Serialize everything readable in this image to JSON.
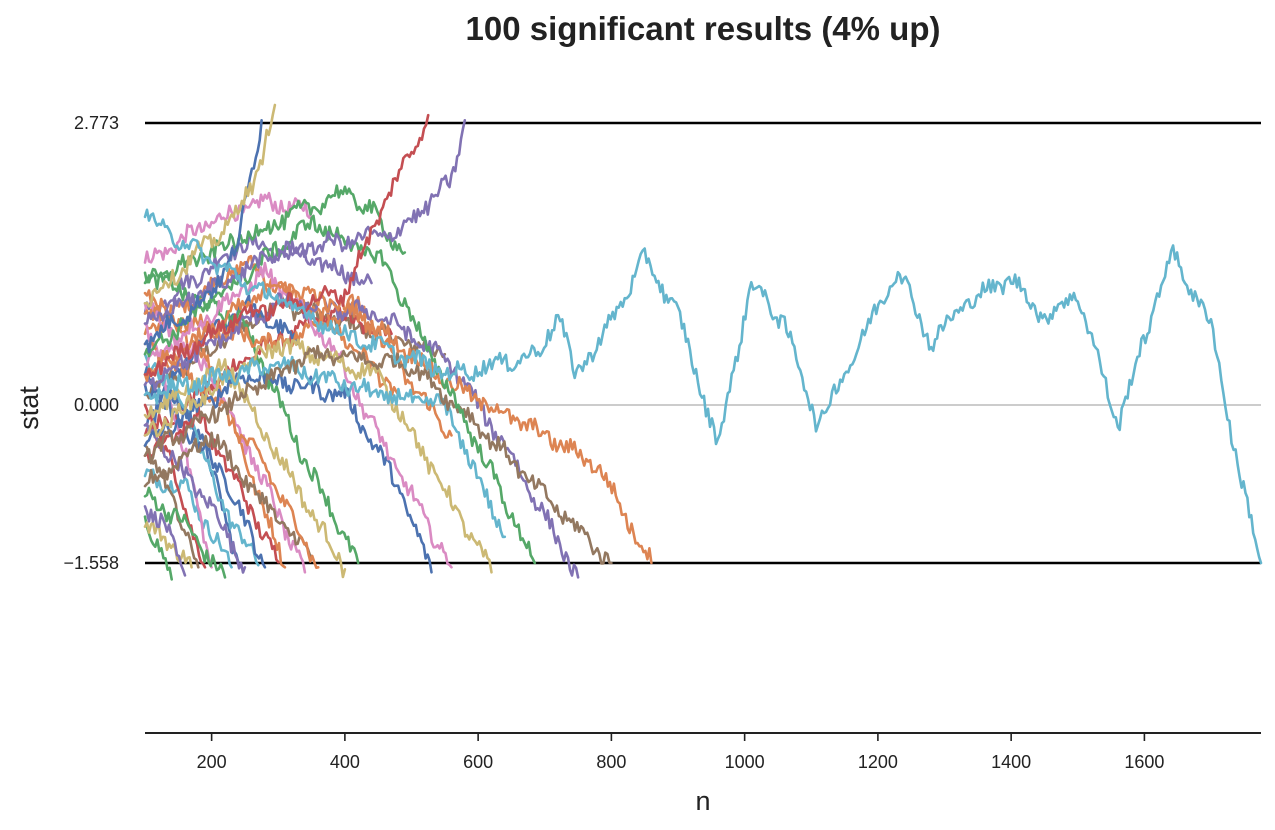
{
  "chart_data": {
    "type": "line",
    "title": "100 significant results (4% up)",
    "xlabel": "n",
    "ylabel": "stat",
    "xlim": [
      100,
      1775
    ],
    "ylim": [
      -3.6,
      3.1
    ],
    "x_ticks": [
      200,
      400,
      600,
      800,
      1000,
      1200,
      1400,
      1600
    ],
    "y_ticks": [
      -1.558,
      0.0,
      2.773
    ],
    "y_tick_labels": [
      "−1.558",
      "0.000",
      "2.773"
    ],
    "grid": false,
    "legend": "none",
    "reference_lines": [
      {
        "y": 2.773,
        "color": "#000000",
        "style": "solid"
      },
      {
        "y": 0.0,
        "color": "#bbbbbb",
        "style": "solid"
      },
      {
        "y": -1.558,
        "color": "#000000",
        "style": "solid"
      }
    ],
    "palette": [
      "#4c72b0",
      "#dd8452",
      "#55a868",
      "#c44e52",
      "#8172b3",
      "#937860",
      "#da8bc3",
      "#8c8c8c",
      "#ccb974",
      "#64b5cd"
    ],
    "series": [
      {
        "color": "#64b5cd",
        "end_x": 1775,
        "end_y": -1.558,
        "anchors": [
          [
            100,
            1.85
          ],
          [
            250,
            1.2
          ],
          [
            400,
            0.7
          ],
          [
            560,
            0.3
          ],
          [
            690,
            0.5
          ],
          [
            720,
            0.9
          ],
          [
            745,
            0.3
          ],
          [
            790,
            0.7
          ],
          [
            850,
            1.45
          ],
          [
            900,
            0.9
          ],
          [
            960,
            -0.4
          ],
          [
            1010,
            1.2
          ],
          [
            1060,
            0.8
          ],
          [
            1110,
            -0.2
          ],
          [
            1180,
            0.7
          ],
          [
            1230,
            1.35
          ],
          [
            1280,
            0.6
          ],
          [
            1330,
            1.0
          ],
          [
            1400,
            1.25
          ],
          [
            1450,
            0.85
          ],
          [
            1500,
            1.1
          ],
          [
            1560,
            -0.2
          ],
          [
            1640,
            1.5
          ],
          [
            1700,
            0.8
          ],
          [
            1740,
            -0.6
          ],
          [
            1775,
            -1.558
          ]
        ]
      },
      {
        "color": "#ccb974",
        "end_x": 295,
        "end_y": 2.95,
        "anchors": [
          [
            100,
            1.0
          ],
          [
            180,
            1.5
          ],
          [
            230,
            1.8
          ],
          [
            270,
            2.3
          ],
          [
            295,
            2.95
          ]
        ]
      },
      {
        "color": "#4c72b0",
        "end_x": 275,
        "end_y": 2.8,
        "anchors": [
          [
            100,
            0.6
          ],
          [
            200,
            1.1
          ],
          [
            240,
            1.6
          ],
          [
            275,
            2.8
          ]
        ]
      },
      {
        "color": "#c44e52",
        "end_x": 525,
        "end_y": 2.85,
        "anchors": [
          [
            100,
            0.3
          ],
          [
            250,
            0.9
          ],
          [
            400,
            1.1
          ],
          [
            460,
            2.0
          ],
          [
            500,
            2.5
          ],
          [
            525,
            2.85
          ]
        ]
      },
      {
        "color": "#8172b3",
        "end_x": 580,
        "end_y": 2.8,
        "anchors": [
          [
            100,
            0.8
          ],
          [
            300,
            1.5
          ],
          [
            480,
            1.7
          ],
          [
            560,
            2.2
          ],
          [
            580,
            2.8
          ]
        ]
      },
      {
        "color": "#55a868",
        "end_x": 490,
        "end_y": 1.5,
        "anchors": [
          [
            100,
            1.2
          ],
          [
            300,
            1.8
          ],
          [
            400,
            2.1
          ],
          [
            440,
            1.9
          ],
          [
            490,
            1.5
          ]
        ]
      },
      {
        "color": "#55a868",
        "end_x": 685,
        "end_y": -1.558,
        "anchors": [
          [
            100,
            0.5
          ],
          [
            350,
            1.8
          ],
          [
            460,
            1.4
          ],
          [
            520,
            0.6
          ],
          [
            600,
            -0.4
          ],
          [
            685,
            -1.558
          ]
        ]
      },
      {
        "color": "#dd8452",
        "end_x": 860,
        "end_y": -1.558,
        "anchors": [
          [
            100,
            0.3
          ],
          [
            300,
            1.2
          ],
          [
            420,
            0.9
          ],
          [
            560,
            0.2
          ],
          [
            700,
            -0.3
          ],
          [
            780,
            -0.6
          ],
          [
            860,
            -1.558
          ]
        ]
      },
      {
        "color": "#937860",
        "end_x": 800,
        "end_y": -1.558,
        "anchors": [
          [
            100,
            -0.5
          ],
          [
            350,
            0.5
          ],
          [
            500,
            0.4
          ],
          [
            600,
            -0.2
          ],
          [
            700,
            -0.9
          ],
          [
            800,
            -1.558
          ]
        ]
      },
      {
        "color": "#8172b3",
        "end_x": 750,
        "end_y": -1.7,
        "anchors": [
          [
            100,
            0.2
          ],
          [
            300,
            1.0
          ],
          [
            450,
            0.9
          ],
          [
            560,
            0.4
          ],
          [
            650,
            -0.5
          ],
          [
            750,
            -1.7
          ]
        ]
      },
      {
        "color": "#64b5cd",
        "end_x": 640,
        "end_y": -1.3,
        "anchors": [
          [
            100,
            0.1
          ],
          [
            300,
            0.4
          ],
          [
            450,
            0.1
          ],
          [
            550,
            0.0
          ],
          [
            640,
            -1.3
          ]
        ]
      },
      {
        "color": "#ccb974",
        "end_x": 620,
        "end_y": -1.65,
        "anchors": [
          [
            100,
            -0.3
          ],
          [
            300,
            0.6
          ],
          [
            450,
            0.3
          ],
          [
            520,
            -0.5
          ],
          [
            620,
            -1.65
          ]
        ]
      },
      {
        "color": "#da8bc3",
        "end_x": 560,
        "end_y": -1.6,
        "anchors": [
          [
            100,
            0.4
          ],
          [
            280,
            1.3
          ],
          [
            380,
            0.6
          ],
          [
            450,
            -0.3
          ],
          [
            560,
            -1.6
          ]
        ]
      },
      {
        "color": "#4c72b0",
        "end_x": 530,
        "end_y": -1.65,
        "anchors": [
          [
            100,
            -0.4
          ],
          [
            250,
            0.3
          ],
          [
            400,
            0.1
          ],
          [
            480,
            -0.8
          ],
          [
            530,
            -1.65
          ]
        ]
      },
      {
        "color": "#dd8452",
        "end_x": 560,
        "end_y": -0.3,
        "anchors": [
          [
            100,
            0.9
          ],
          [
            300,
            0.6
          ],
          [
            420,
            1.0
          ],
          [
            500,
            0.2
          ],
          [
            560,
            -0.3
          ]
        ]
      },
      {
        "color": "#55a868",
        "end_x": 420,
        "end_y": -1.558,
        "anchors": [
          [
            100,
            1.3
          ],
          [
            250,
            0.8
          ],
          [
            330,
            -0.4
          ],
          [
            420,
            -1.558
          ]
        ]
      },
      {
        "color": "#ccb974",
        "end_x": 400,
        "end_y": -1.62,
        "anchors": [
          [
            100,
            -0.1
          ],
          [
            220,
            0.4
          ],
          [
            300,
            -0.5
          ],
          [
            400,
            -1.62
          ]
        ]
      },
      {
        "color": "#dd8452",
        "end_x": 360,
        "end_y": -1.6,
        "anchors": [
          [
            100,
            0.6
          ],
          [
            200,
            0.1
          ],
          [
            280,
            -0.6
          ],
          [
            360,
            -1.6
          ]
        ]
      },
      {
        "color": "#937860",
        "end_x": 350,
        "end_y": -1.5,
        "anchors": [
          [
            100,
            -0.8
          ],
          [
            200,
            -0.3
          ],
          [
            270,
            -0.9
          ],
          [
            350,
            -1.5
          ]
        ]
      },
      {
        "color": "#da8bc3",
        "end_x": 340,
        "end_y": -1.65,
        "anchors": [
          [
            100,
            1.0
          ],
          [
            200,
            0.3
          ],
          [
            260,
            -0.5
          ],
          [
            340,
            -1.65
          ]
        ]
      },
      {
        "color": "#c44e52",
        "end_x": 300,
        "end_y": -1.55,
        "anchors": [
          [
            100,
            -0.5
          ],
          [
            180,
            -0.1
          ],
          [
            240,
            -0.8
          ],
          [
            300,
            -1.55
          ]
        ]
      },
      {
        "color": "#4c72b0",
        "end_x": 280,
        "end_y": -1.6,
        "anchors": [
          [
            100,
            0.2
          ],
          [
            170,
            -0.3
          ],
          [
            220,
            -0.7
          ],
          [
            280,
            -1.6
          ]
        ]
      },
      {
        "color": "#64b5cd",
        "end_x": 270,
        "end_y": -1.58,
        "anchors": [
          [
            100,
            0.5
          ],
          [
            160,
            0.0
          ],
          [
            210,
            -0.9
          ],
          [
            270,
            -1.58
          ]
        ]
      },
      {
        "color": "#8172b3",
        "end_x": 250,
        "end_y": -1.6,
        "anchors": [
          [
            100,
            -0.2
          ],
          [
            150,
            -0.6
          ],
          [
            200,
            -1.0
          ],
          [
            250,
            -1.6
          ]
        ]
      },
      {
        "color": "#55a868",
        "end_x": 220,
        "end_y": -1.7,
        "anchors": [
          [
            100,
            -0.9
          ],
          [
            150,
            -1.1
          ],
          [
            220,
            -1.7
          ]
        ]
      },
      {
        "color": "#da8bc3",
        "end_x": 200,
        "end_y": -1.6,
        "anchors": [
          [
            100,
            0.8
          ],
          [
            150,
            -0.2
          ],
          [
            200,
            -1.6
          ]
        ]
      },
      {
        "color": "#937860",
        "end_x": 180,
        "end_y": -1.6,
        "anchors": [
          [
            100,
            -0.4
          ],
          [
            140,
            -0.9
          ],
          [
            180,
            -1.6
          ]
        ]
      },
      {
        "color": "#8172b3",
        "end_x": 160,
        "end_y": -1.68,
        "anchors": [
          [
            100,
            -1.0
          ],
          [
            130,
            -1.2
          ],
          [
            160,
            -1.68
          ]
        ]
      },
      {
        "color": "#c44e52",
        "end_x": 190,
        "end_y": -1.6,
        "anchors": [
          [
            100,
            0.0
          ],
          [
            140,
            -0.6
          ],
          [
            190,
            -1.6
          ]
        ]
      },
      {
        "color": "#4c72b0",
        "end_x": 240,
        "end_y": -1.55,
        "anchors": [
          [
            100,
            0.3
          ],
          [
            180,
            -0.2
          ],
          [
            240,
            -1.55
          ]
        ]
      },
      {
        "color": "#64b5cd",
        "end_x": 230,
        "end_y": -1.6,
        "anchors": [
          [
            100,
            -0.7
          ],
          [
            160,
            -0.8
          ],
          [
            230,
            -1.6
          ]
        ]
      },
      {
        "color": "#ccb974",
        "end_x": 170,
        "end_y": -1.6,
        "anchors": [
          [
            100,
            -1.2
          ],
          [
            130,
            -1.3
          ],
          [
            170,
            -1.6
          ]
        ]
      },
      {
        "color": "#dd8452",
        "end_x": 310,
        "end_y": -1.6,
        "anchors": [
          [
            100,
            1.1
          ],
          [
            200,
            0.4
          ],
          [
            310,
            -1.6
          ]
        ]
      },
      {
        "color": "#55a868",
        "end_x": 140,
        "end_y": -1.72,
        "anchors": [
          [
            100,
            -1.1
          ],
          [
            140,
            -1.72
          ]
        ]
      },
      {
        "color": "#4c72b0",
        "end_x": 330,
        "end_y": 0.6,
        "anchors": [
          [
            100,
            -0.2
          ],
          [
            180,
            0.6
          ],
          [
            250,
            1.0
          ],
          [
            330,
            0.6
          ]
        ]
      },
      {
        "color": "#dd8452",
        "end_x": 480,
        "end_y": 0.1,
        "anchors": [
          [
            100,
            0.7
          ],
          [
            250,
            1.4
          ],
          [
            380,
            0.8
          ],
          [
            480,
            0.1
          ]
        ]
      },
      {
        "color": "#8172b3",
        "end_x": 440,
        "end_y": 1.2,
        "anchors": [
          [
            100,
            0.9
          ],
          [
            250,
            1.6
          ],
          [
            360,
            1.4
          ],
          [
            440,
            1.2
          ]
        ]
      },
      {
        "color": "#da8bc3",
        "end_x": 350,
        "end_y": 1.9,
        "anchors": [
          [
            100,
            1.4
          ],
          [
            200,
            1.8
          ],
          [
            280,
            2.0
          ],
          [
            350,
            1.9
          ]
        ]
      },
      {
        "color": "#c44e52",
        "end_x": 470,
        "end_y": 0.7,
        "anchors": [
          [
            100,
            -0.3
          ],
          [
            260,
            0.5
          ],
          [
            380,
            0.9
          ],
          [
            470,
            0.7
          ]
        ]
      },
      {
        "color": "#937860",
        "end_x": 550,
        "end_y": 0.5,
        "anchors": [
          [
            100,
            0.1
          ],
          [
            300,
            1.0
          ],
          [
            450,
            0.7
          ],
          [
            550,
            0.5
          ]
        ]
      }
    ]
  }
}
